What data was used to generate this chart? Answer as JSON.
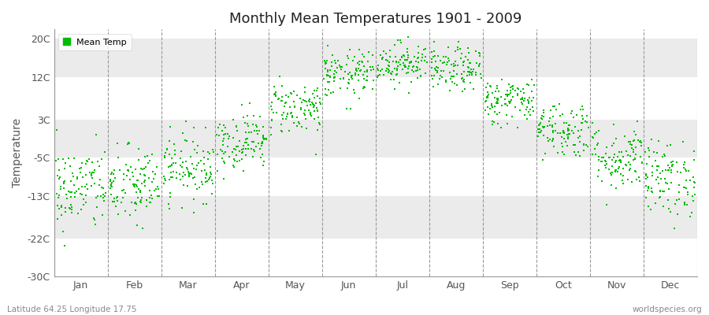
{
  "title": "Monthly Mean Temperatures 1901 - 2009",
  "ylabel": "Temperature",
  "bottom_left_text": "Latitude 64.25 Longitude 17.75",
  "bottom_right_text": "worldspecies.org",
  "ylim": [
    -30,
    22
  ],
  "yticks": [
    -30,
    -22,
    -13,
    -5,
    3,
    12,
    20
  ],
  "ytick_labels": [
    "-30C",
    "-22C",
    "-13C",
    "-5C",
    "3C",
    "12C",
    "20C"
  ],
  "months": [
    "Jan",
    "Feb",
    "Mar",
    "Apr",
    "May",
    "Jun",
    "Jul",
    "Aug",
    "Sep",
    "Oct",
    "Nov",
    "Dec"
  ],
  "dot_color": "#00bb00",
  "background_color": "#ffffff",
  "plot_bg_color": "#ffffff",
  "band_colors": [
    "#ffffff",
    "#ebebeb"
  ],
  "legend_label": "Mean Temp",
  "monthly_means": [
    -11.5,
    -11.0,
    -7.0,
    -1.5,
    5.5,
    12.5,
    15.0,
    13.5,
    7.0,
    1.0,
    -5.0,
    -9.5
  ],
  "monthly_stds": [
    4.5,
    4.2,
    3.5,
    3.0,
    2.8,
    2.5,
    2.2,
    2.3,
    2.5,
    3.0,
    3.5,
    4.0
  ],
  "n_years": 109,
  "seed": 42,
  "vline_color": "#999999",
  "spine_color": "#999999",
  "tick_label_color": "#555555",
  "title_color": "#222222"
}
